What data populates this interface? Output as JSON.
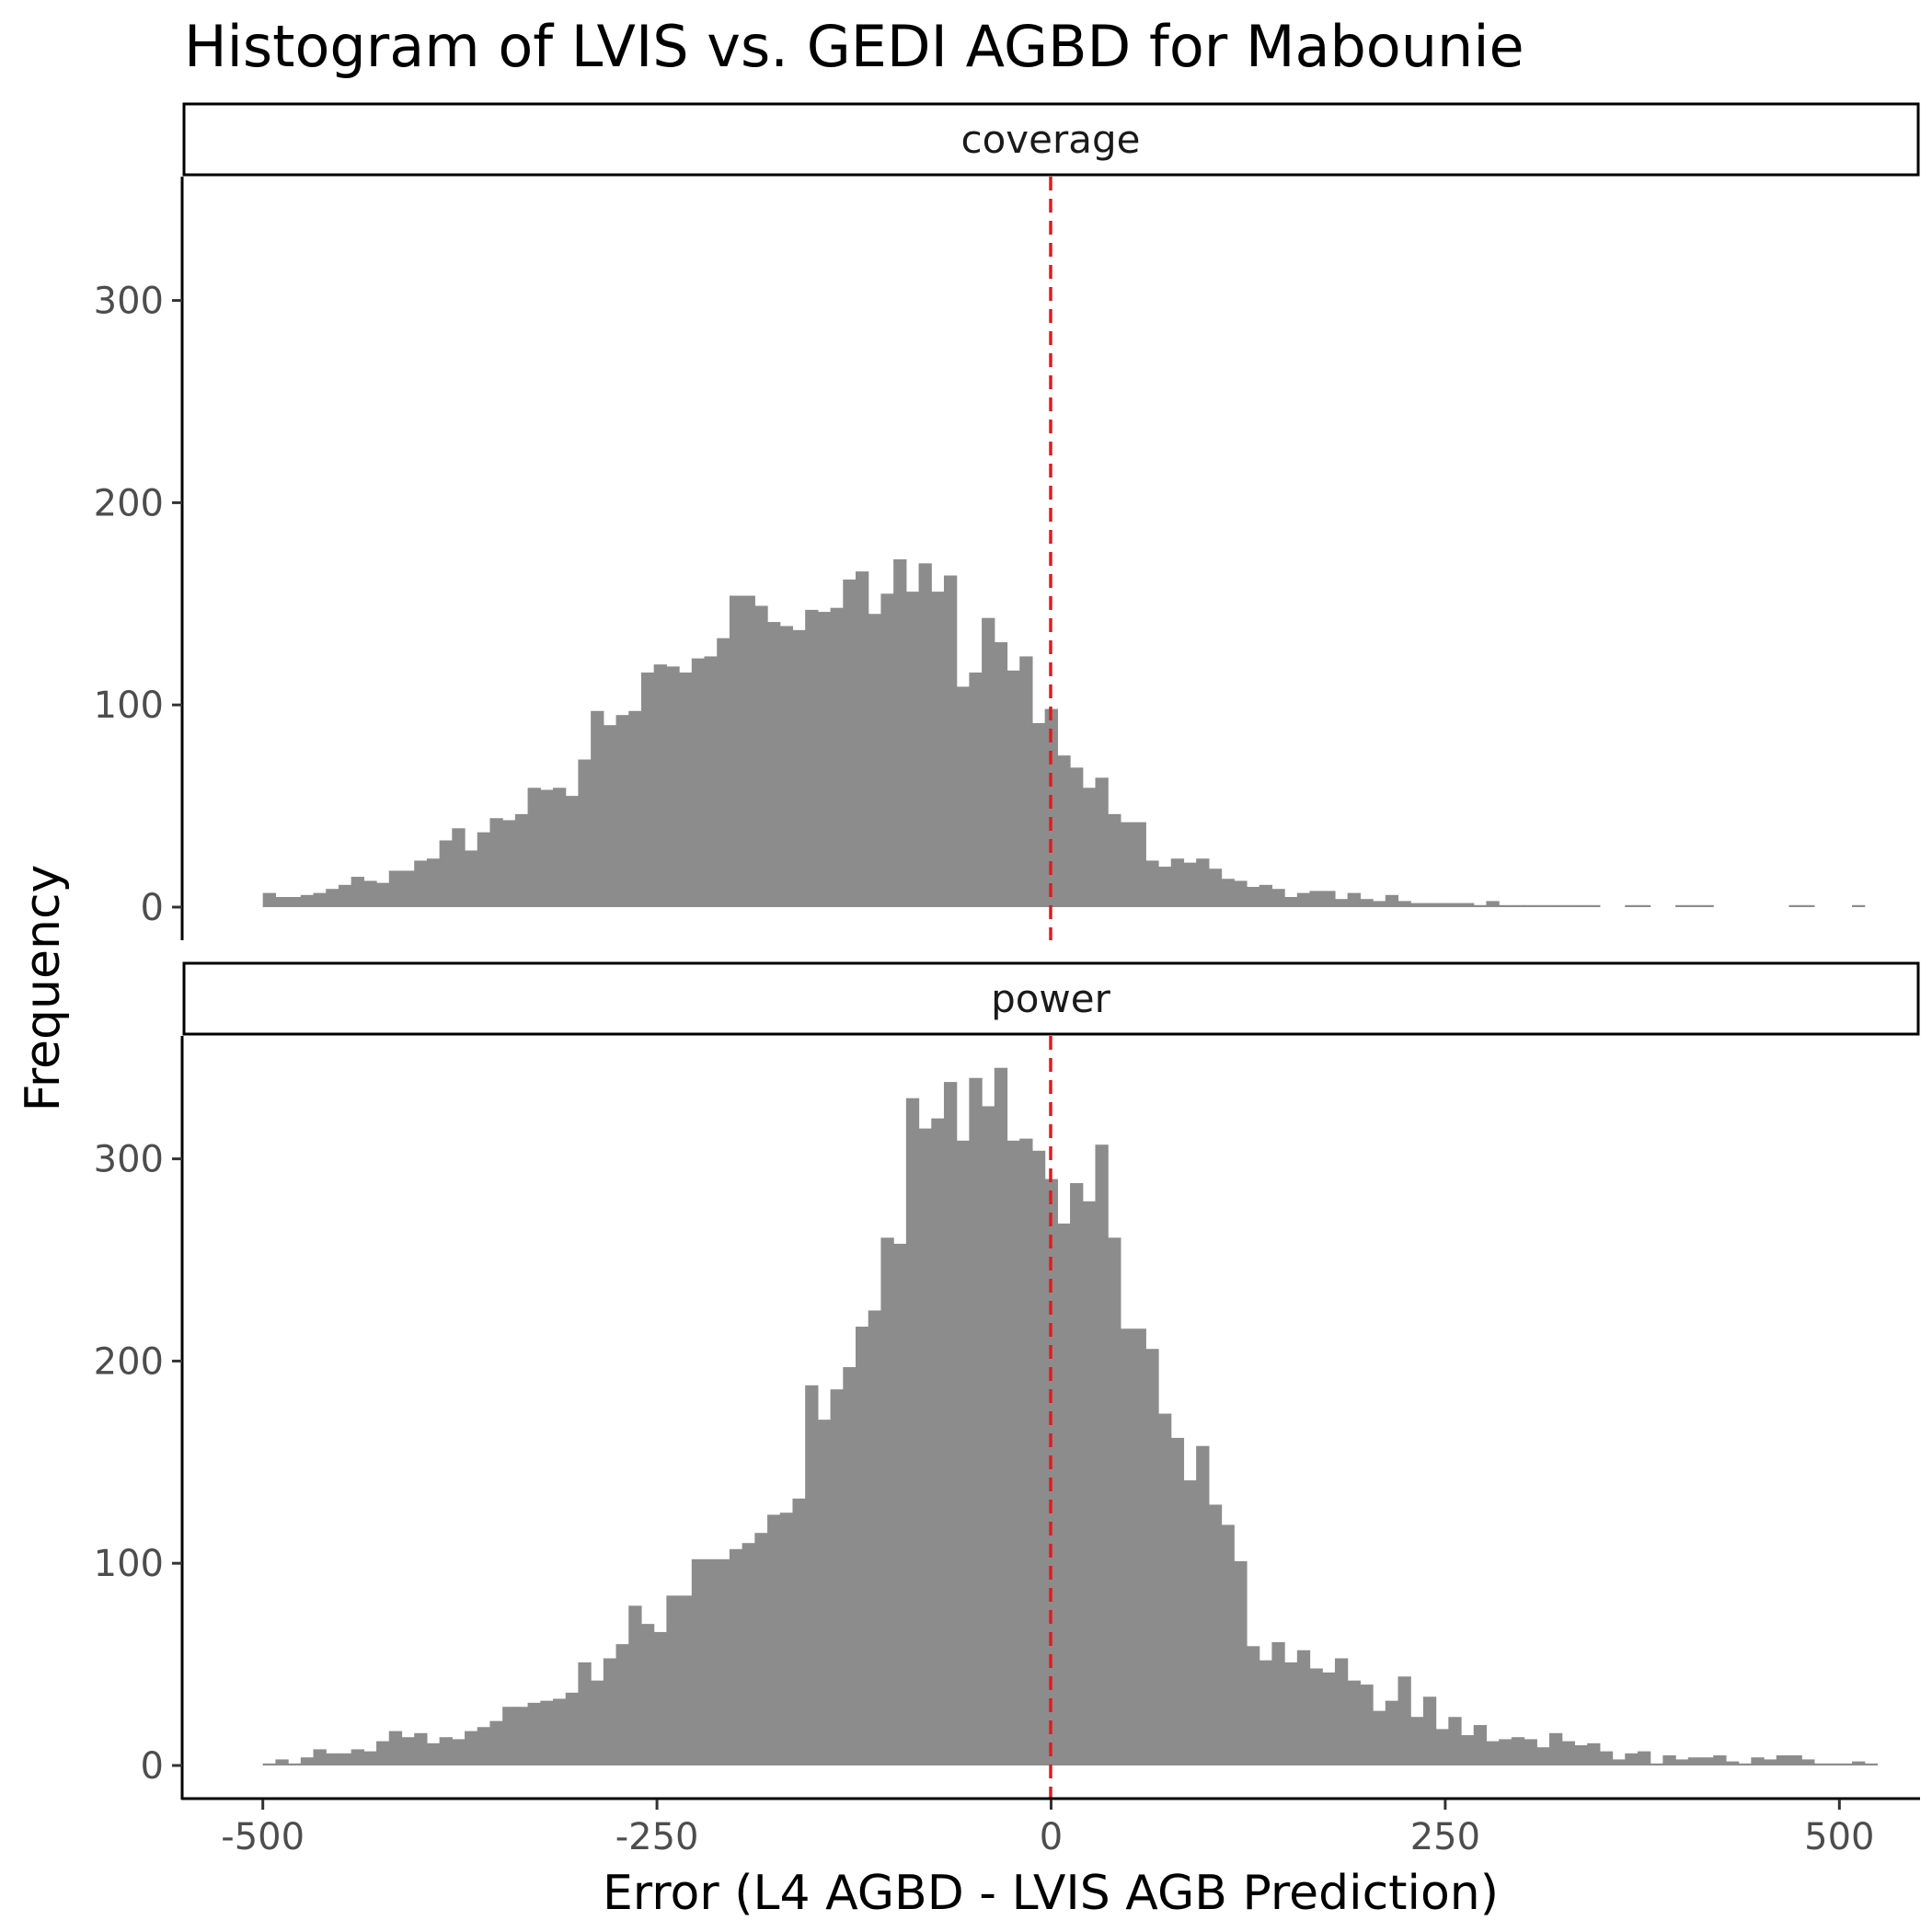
{
  "chart_data": {
    "type": "bar",
    "subtype": "faceted histogram",
    "title": "Histogram of LVIS vs. GEDI AGBD for Mabounie",
    "xlabel": "Error (L4 AGBD - LVIS AGB Prediction)",
    "ylabel": "Frequency",
    "xlim": [
      -550,
      550
    ],
    "ylim": [
      0,
      360
    ],
    "x_ticks": [
      -500,
      -250,
      0,
      250,
      500
    ],
    "x_tick_labels": [
      "-500",
      "-250",
      "0",
      "250",
      "500"
    ],
    "y_ticks": [
      0,
      100,
      200,
      300
    ],
    "y_tick_labels": [
      "0",
      "100",
      "200",
      "300"
    ],
    "bin_width": 8,
    "bin_start": -500,
    "grid": false,
    "reference_line": {
      "x": 0,
      "color": "#e41a1c",
      "style": "dashed"
    },
    "bar_color": "#8c8c8c",
    "panels": [
      {
        "name": "coverage",
        "values": [
          7,
          5,
          5,
          6,
          7,
          9,
          11,
          15,
          13,
          12,
          18,
          18,
          23,
          24,
          33,
          39,
          28,
          37,
          44,
          43,
          46,
          59,
          58,
          59,
          55,
          73,
          97,
          90,
          95,
          97,
          116,
          120,
          119,
          116,
          123,
          124,
          133,
          154,
          154,
          149,
          141,
          139,
          137,
          147,
          146,
          148,
          162,
          166,
          145,
          155,
          172,
          156,
          170,
          156,
          164,
          109,
          116,
          143,
          131,
          117,
          124,
          91,
          98,
          75,
          69,
          59,
          64,
          46,
          42,
          42,
          23,
          20,
          24,
          22,
          24,
          19,
          14,
          13,
          10,
          11,
          9,
          5,
          7,
          8,
          8,
          4,
          7,
          4,
          3,
          6,
          3,
          2,
          2,
          2,
          2,
          2,
          1,
          3,
          1,
          1,
          1,
          1,
          1,
          1,
          1,
          1,
          0,
          0,
          1,
          1,
          0,
          0,
          1,
          1,
          1,
          0,
          0,
          0,
          0,
          0,
          0,
          1,
          1,
          0,
          0,
          0,
          1,
          0,
          0
        ]
      },
      {
        "name": "power",
        "values": [
          1,
          3,
          1,
          4,
          8,
          6,
          6,
          8,
          7,
          12,
          17,
          14,
          16,
          11,
          14,
          13,
          17,
          19,
          22,
          29,
          29,
          31,
          32,
          33,
          36,
          51,
          42,
          53,
          60,
          79,
          70,
          66,
          84,
          84,
          102,
          102,
          102,
          107,
          110,
          115,
          124,
          125,
          132,
          188,
          171,
          186,
          197,
          217,
          225,
          261,
          258,
          330,
          315,
          320,
          338,
          309,
          340,
          326,
          345,
          309,
          310,
          304,
          290,
          268,
          288,
          279,
          307,
          261,
          216,
          216,
          206,
          174,
          162,
          141,
          158,
          129,
          119,
          101,
          59,
          52,
          61,
          51,
          57,
          48,
          46,
          53,
          42,
          40,
          27,
          32,
          44,
          24,
          34,
          18,
          24,
          15,
          20,
          12,
          13,
          14,
          13,
          9,
          16,
          12,
          10,
          11,
          7,
          3,
          6,
          7,
          1,
          5,
          3,
          4,
          4,
          5,
          2,
          1,
          4,
          3,
          5,
          5,
          3,
          1,
          1,
          1,
          2,
          1,
          0,
          0
        ]
      }
    ]
  }
}
